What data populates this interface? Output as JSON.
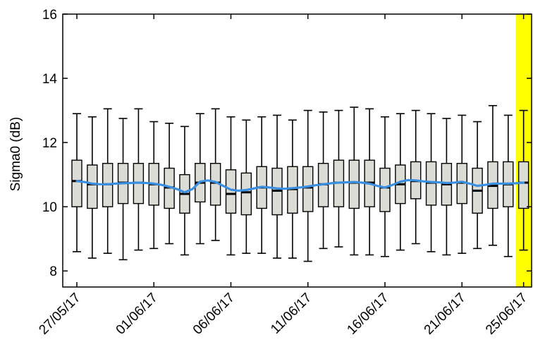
{
  "chart_data": {
    "type": "boxplot",
    "title": "",
    "xlabel": "",
    "ylabel": "Sigma0 (dB)",
    "ylim": [
      7.5,
      16
    ],
    "yticks": [
      8,
      10,
      12,
      14,
      16
    ],
    "xtick_labels": [
      "27/05/17",
      "01/06/17",
      "06/06/17",
      "11/06/17",
      "16/06/17",
      "21/06/17",
      "25/06/17"
    ],
    "xtick_days": [
      0,
      5,
      10,
      15,
      20,
      25,
      29
    ],
    "highlight_days": [
      29,
      30
    ],
    "grid": false,
    "colors": {
      "box_fill": "#dcdcd6",
      "box_edge": "#000000",
      "mean_line": "#3a8fe0",
      "highlight": "#ffff00"
    },
    "boxes": [
      {
        "day": 0,
        "low": 8.6,
        "q1": 10.0,
        "median": 10.8,
        "q3": 11.45,
        "high": 12.9
      },
      {
        "day": 1,
        "low": 8.4,
        "q1": 9.95,
        "median": 10.7,
        "q3": 11.3,
        "high": 12.8
      },
      {
        "day": 2,
        "low": 8.55,
        "q1": 10.0,
        "median": 10.7,
        "q3": 11.35,
        "high": 13.05
      },
      {
        "day": 3,
        "low": 8.35,
        "q1": 10.1,
        "median": 10.75,
        "q3": 11.35,
        "high": 12.75
      },
      {
        "day": 4,
        "low": 8.65,
        "q1": 10.1,
        "median": 10.75,
        "q3": 11.35,
        "high": 13.05
      },
      {
        "day": 5,
        "low": 8.7,
        "q1": 10.05,
        "median": 10.7,
        "q3": 11.35,
        "high": 12.65
      },
      {
        "day": 6,
        "low": 8.85,
        "q1": 9.95,
        "median": 10.6,
        "q3": 11.2,
        "high": 12.6
      },
      {
        "day": 7,
        "low": 8.5,
        "q1": 9.8,
        "median": 10.4,
        "q3": 11.0,
        "high": 12.5
      },
      {
        "day": 8,
        "low": 8.85,
        "q1": 10.15,
        "median": 10.75,
        "q3": 11.35,
        "high": 12.9
      },
      {
        "day": 9,
        "low": 8.95,
        "q1": 10.05,
        "median": 10.75,
        "q3": 11.35,
        "high": 13.05
      },
      {
        "day": 10,
        "low": 8.5,
        "q1": 9.8,
        "median": 10.4,
        "q3": 11.15,
        "high": 12.8
      },
      {
        "day": 11,
        "low": 8.55,
        "q1": 9.75,
        "median": 10.45,
        "q3": 11.05,
        "high": 12.7
      },
      {
        "day": 12,
        "low": 8.55,
        "q1": 9.95,
        "median": 10.6,
        "q3": 11.25,
        "high": 12.8
      },
      {
        "day": 13,
        "low": 8.4,
        "q1": 9.75,
        "median": 10.5,
        "q3": 11.2,
        "high": 12.85
      },
      {
        "day": 14,
        "low": 8.4,
        "q1": 9.8,
        "median": 10.55,
        "q3": 11.25,
        "high": 12.7
      },
      {
        "day": 15,
        "low": 8.3,
        "q1": 9.85,
        "median": 10.6,
        "q3": 11.25,
        "high": 13.0
      },
      {
        "day": 16,
        "low": 8.7,
        "q1": 10.0,
        "median": 10.7,
        "q3": 11.35,
        "high": 12.95
      },
      {
        "day": 17,
        "low": 8.75,
        "q1": 10.0,
        "median": 10.75,
        "q3": 11.45,
        "high": 13.0
      },
      {
        "day": 18,
        "low": 8.5,
        "q1": 9.95,
        "median": 10.75,
        "q3": 11.45,
        "high": 13.1
      },
      {
        "day": 19,
        "low": 8.5,
        "q1": 10.0,
        "median": 10.75,
        "q3": 11.45,
        "high": 13.05
      },
      {
        "day": 20,
        "low": 8.45,
        "q1": 9.85,
        "median": 10.6,
        "q3": 11.2,
        "high": 12.8
      },
      {
        "day": 21,
        "low": 8.65,
        "q1": 10.1,
        "median": 10.7,
        "q3": 11.3,
        "high": 12.9
      },
      {
        "day": 22,
        "low": 8.85,
        "q1": 10.25,
        "median": 10.8,
        "q3": 11.4,
        "high": 13.0
      },
      {
        "day": 23,
        "low": 8.6,
        "q1": 10.05,
        "median": 10.75,
        "q3": 11.4,
        "high": 12.9
      },
      {
        "day": 24,
        "low": 8.5,
        "q1": 10.05,
        "median": 10.7,
        "q3": 11.35,
        "high": 12.75
      },
      {
        "day": 25,
        "low": 8.55,
        "q1": 10.1,
        "median": 10.75,
        "q3": 11.35,
        "high": 12.85
      },
      {
        "day": 26,
        "low": 8.7,
        "q1": 9.8,
        "median": 10.5,
        "q3": 11.2,
        "high": 12.65
      },
      {
        "day": 27,
        "low": 8.8,
        "q1": 9.95,
        "median": 10.65,
        "q3": 11.4,
        "high": 13.15
      },
      {
        "day": 28,
        "low": 8.45,
        "q1": 10.0,
        "median": 10.7,
        "q3": 11.4,
        "high": 12.85
      },
      {
        "day": 29,
        "low": 8.65,
        "q1": 9.95,
        "median": 10.75,
        "q3": 11.4,
        "high": 13.0
      }
    ],
    "mean_line": {
      "x": [
        0,
        0.5,
        1,
        1.5,
        2,
        2.5,
        3,
        3.5,
        4,
        4.5,
        5,
        5.5,
        6,
        6.5,
        7,
        7.5,
        8,
        8.5,
        9,
        9.5,
        10,
        10.5,
        11,
        11.5,
        12,
        12.5,
        13,
        13.5,
        14,
        14.5,
        15,
        15.5,
        16,
        16.5,
        17,
        17.5,
        18,
        18.5,
        19,
        19.5,
        20,
        20.5,
        21,
        21.5,
        22,
        22.5,
        23,
        23.5,
        24,
        24.5,
        25,
        25.5,
        26,
        26.5,
        27,
        27.5,
        28,
        28.5,
        29
      ],
      "y": [
        10.8,
        10.77,
        10.72,
        10.7,
        10.7,
        10.72,
        10.73,
        10.74,
        10.75,
        10.74,
        10.72,
        10.68,
        10.62,
        10.55,
        10.45,
        10.55,
        10.78,
        10.82,
        10.77,
        10.65,
        10.53,
        10.5,
        10.52,
        10.57,
        10.62,
        10.6,
        10.57,
        10.56,
        10.58,
        10.6,
        10.63,
        10.67,
        10.7,
        10.73,
        10.75,
        10.76,
        10.77,
        10.75,
        10.72,
        10.65,
        10.6,
        10.68,
        10.78,
        10.83,
        10.82,
        10.79,
        10.77,
        10.76,
        10.74,
        10.75,
        10.78,
        10.72,
        10.65,
        10.68,
        10.72,
        10.72,
        10.72,
        10.73,
        10.75
      ]
    }
  }
}
